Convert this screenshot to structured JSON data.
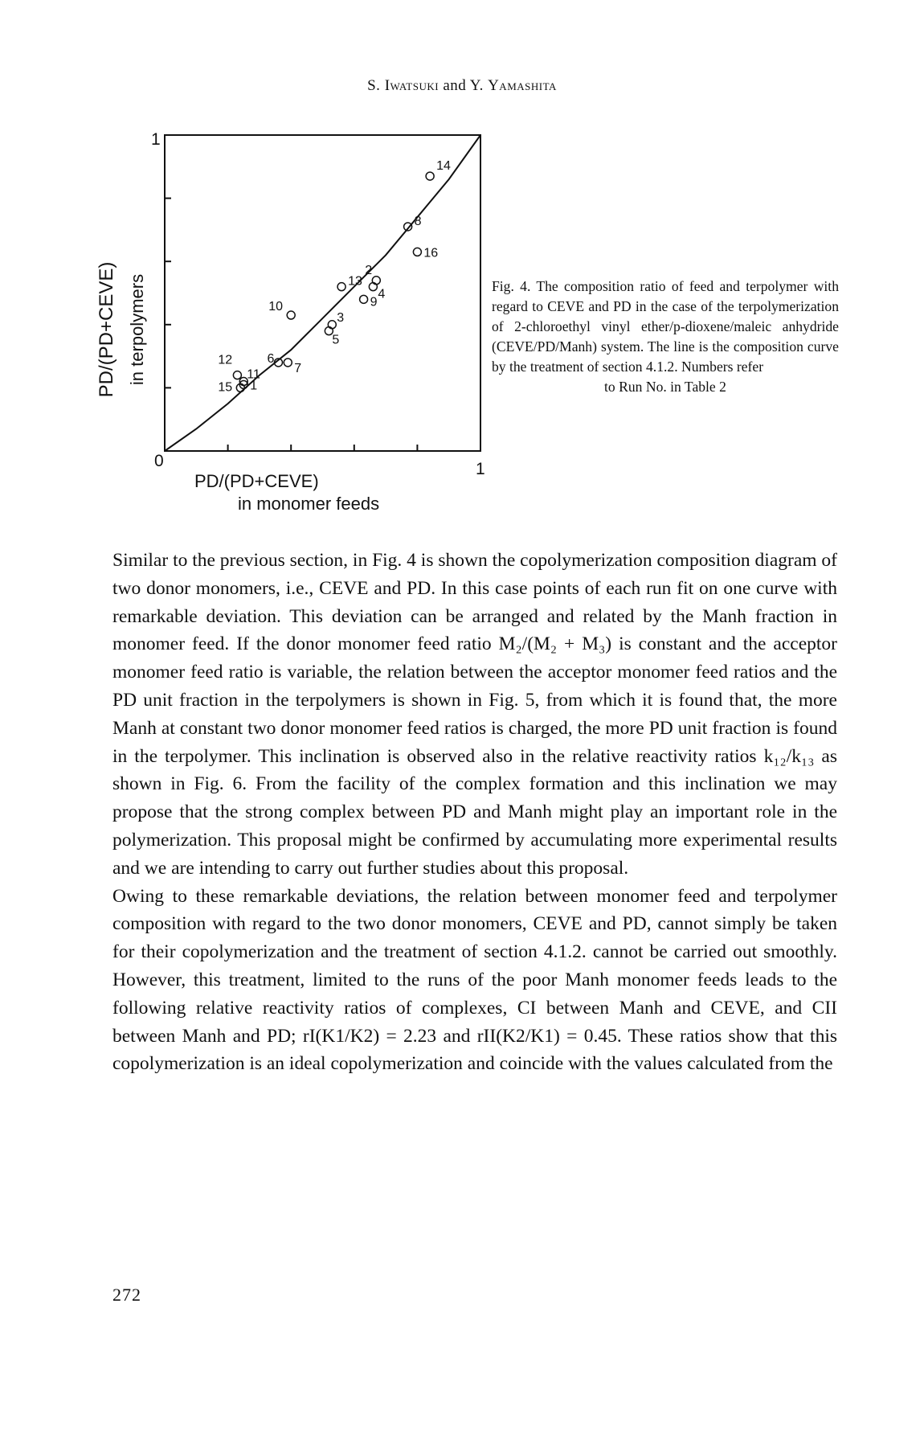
{
  "header": {
    "authors_initial_1": "S. ",
    "author_1": "Iwatsuki",
    "and": " and Y. ",
    "author_2": "Yamashita"
  },
  "figure": {
    "y_axis_label_line1": "PD/(PD+CEVE)",
    "y_axis_label_line2": "in terpolymers",
    "x_axis_label_line1": "PD/(PD+CEVE)",
    "x_axis_label_line2": "in monomer feeds",
    "tick_y_top": "1",
    "tick_origin": "0",
    "tick_x_right": "1"
  },
  "chart_data": {
    "type": "scatter",
    "title": "",
    "xlabel": "PD/(PD+CEVE) in monomer feeds",
    "ylabel": "PD/(PD+CEVE) in terpolymers",
    "xlim": [
      0,
      1
    ],
    "ylim": [
      0,
      1
    ],
    "points": [
      {
        "label": "1",
        "x": 0.25,
        "y": 0.21
      },
      {
        "label": "2",
        "x": 0.67,
        "y": 0.54
      },
      {
        "label": "3",
        "x": 0.53,
        "y": 0.4
      },
      {
        "label": "4",
        "x": 0.66,
        "y": 0.52
      },
      {
        "label": "5",
        "x": 0.52,
        "y": 0.38
      },
      {
        "label": "6",
        "x": 0.36,
        "y": 0.28
      },
      {
        "label": "7",
        "x": 0.39,
        "y": 0.28
      },
      {
        "label": "8",
        "x": 0.77,
        "y": 0.71
      },
      {
        "label": "9",
        "x": 0.63,
        "y": 0.48
      },
      {
        "label": "10",
        "x": 0.4,
        "y": 0.43
      },
      {
        "label": "11",
        "x": 0.25,
        "y": 0.22
      },
      {
        "label": "12",
        "x": 0.23,
        "y": 0.24
      },
      {
        "label": "13",
        "x": 0.56,
        "y": 0.52
      },
      {
        "label": "14",
        "x": 0.84,
        "y": 0.87
      },
      {
        "label": "15",
        "x": 0.24,
        "y": 0.2
      },
      {
        "label": "16",
        "x": 0.8,
        "y": 0.63
      }
    ],
    "curve": {
      "name": "composition curve",
      "x": [
        0,
        0.1,
        0.2,
        0.3,
        0.4,
        0.5,
        0.6,
        0.7,
        0.8,
        0.9,
        1.0
      ],
      "y": [
        0,
        0.07,
        0.15,
        0.24,
        0.32,
        0.42,
        0.52,
        0.62,
        0.74,
        0.86,
        1.0
      ]
    },
    "grid": false,
    "legend": "none"
  },
  "caption": {
    "text": "Fig. 4. The composition ratio of feed and terpolymer with regard to CEVE and PD in the case of the terpolymerization of 2-chloroethyl vinyl ether/p-dioxene/maleic anhydride (CEVE/PD/Manh) system. The line is the composition curve by the treatment of section 4.1.2. Numbers refer",
    "last_line": "to Run No. in Table 2"
  },
  "body": {
    "paragraph_1": "Similar to the previous section, in Fig. 4 is shown the copolymerization composition diagram of two donor monomers, i.e., CEVE and PD. In this case points of each run fit on one curve with remarkable deviation. This deviation can be arranged and related by the Manh fraction in monomer feed. If the donor monomer feed ratio M₂/(M₂ + M₃) is constant and the acceptor monomer feed ratio is variable, the relation between the acceptor monomer feed ratios and the PD unit fraction in the terpolymers is shown in Fig. 5, from which it is found that, the more Manh at constant two donor monomer feed ratios is charged, the more PD unit fraction is found in the terpolymer. This inclination is observed also in the relative reactivity ratios k₁₂/k₁₃ as shown in Fig. 6. From the facility of the complex formation and this inclination we may propose that the strong complex between PD and Manh might play an important role in the polymerization. This proposal might be confirmed by accumulating more experimental results and we are intending to carry out further studies about this proposal.",
    "paragraph_2": "Owing to these remarkable deviations, the relation between monomer feed and terpolymer composition with regard to the two donor monomers, CEVE and PD, cannot simply be taken for their copolymerization and the treatment of section 4.1.2. cannot be carried out smoothly. However, this treatment, limited to the runs of the poor Manh monomer feeds leads to the following relative reactivity ratios of complexes, CI between Manh and CEVE, and CII between Manh and PD; rI(K1/K2) = 2.23 and rII(K2/K1) = 0.45. These ratios show that this copolymerization is an ideal copolymerization and coincide with the values calculated from the"
  },
  "footer": {
    "page_number": "272"
  }
}
